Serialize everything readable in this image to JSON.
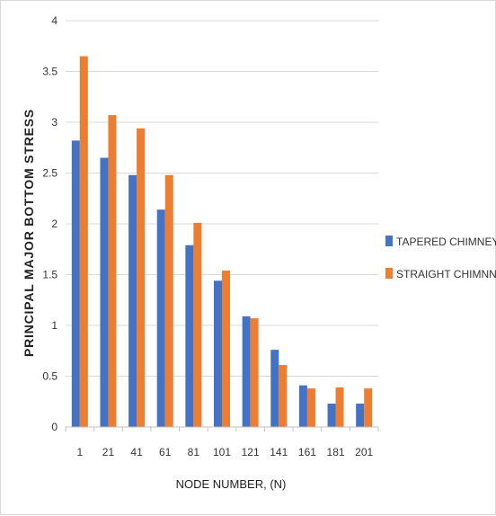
{
  "colors": {
    "tapered": "#4472C4",
    "straight": "#ED7D31",
    "grid": "#d9d9d9",
    "axis": "#bfbfbf"
  },
  "chart_data": {
    "type": "bar",
    "title": "",
    "xlabel": "NODE NUMBER, (N)",
    "ylabel": "PRINCIPAL MAJOR BOTTOM STRESS",
    "categories": [
      "1",
      "21",
      "41",
      "61",
      "81",
      "101",
      "121",
      "141",
      "161",
      "181",
      "201"
    ],
    "ylim": [
      0,
      4
    ],
    "yticks": [
      "0",
      "0.5",
      "1",
      "1.5",
      "2",
      "2.5",
      "3",
      "3.5",
      "4"
    ],
    "grid": true,
    "legend_position": "right",
    "series": [
      {
        "name": "TAPERED CHIMNEY",
        "color": "#4472C4",
        "values": [
          2.82,
          2.65,
          2.48,
          2.14,
          1.79,
          1.44,
          1.09,
          0.76,
          0.41,
          0.23,
          0.23
        ]
      },
      {
        "name": "STRAIGHT CHIMNNEY",
        "color": "#ED7D31",
        "values": [
          3.65,
          3.07,
          2.94,
          2.48,
          2.01,
          1.54,
          1.07,
          0.61,
          0.38,
          0.39,
          0.38
        ]
      }
    ]
  }
}
